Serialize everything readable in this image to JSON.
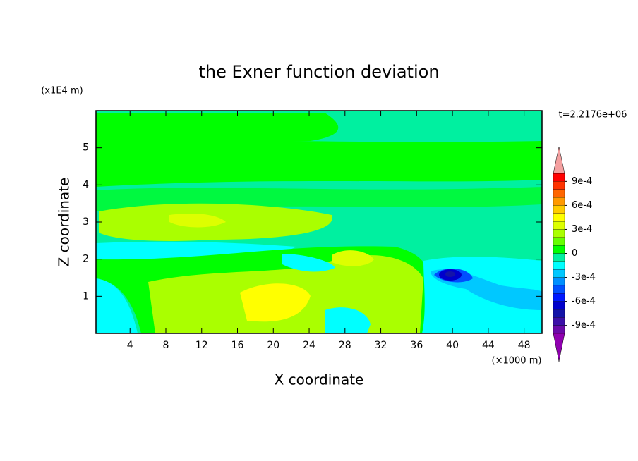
{
  "chart_data": {
    "type": "contour",
    "title": "the Exner function deviation",
    "xlabel": "X coordinate",
    "ylabel": "Z coordinate",
    "x_unit": "(×1000 m)",
    "y_unit": "(x1E4 m)",
    "time_label": "t=2.2176e+06",
    "xlim": [
      0.2,
      50
    ],
    "ylim": [
      0,
      6
    ],
    "xticks": [
      4,
      8,
      12,
      16,
      20,
      24,
      28,
      32,
      36,
      40,
      44,
      48
    ],
    "yticks": [
      1,
      2,
      3,
      4,
      5
    ],
    "colorbar": {
      "levels": [
        -0.001,
        -0.0009,
        -0.0008,
        -0.0007,
        -0.0006,
        -0.0005,
        -0.0004,
        -0.0003,
        -0.0002,
        -0.0001,
        0,
        0.0001,
        0.0002,
        0.0003,
        0.0004,
        0.0005,
        0.0006,
        0.0007,
        0.0008,
        0.0009,
        0.001
      ],
      "colors": [
        "#6a0aa8",
        "#3c10a8",
        "#1414a8",
        "#0000cc",
        "#0018ff",
        "#0050ff",
        "#0090ff",
        "#00c8ff",
        "#00ffff",
        "#00f0a0",
        "#00ff00",
        "#66ff00",
        "#aaff00",
        "#ddff00",
        "#ffff00",
        "#ffcc00",
        "#ff9900",
        "#ff6600",
        "#ff3300",
        "#ff0000"
      ],
      "over_color": "#f4a0a0",
      "under_color": "#9000b0",
      "ticks": [
        {
          "value": 0.0009,
          "label": "9e-4"
        },
        {
          "value": 0.0006,
          "label": "6e-4"
        },
        {
          "value": 0.0003,
          "label": "3e-4"
        },
        0,
        {
          "value": -0.0003,
          "label": "-3e-4"
        },
        {
          "value": -0.0006,
          "label": "-6e-4"
        },
        {
          "value": -0.0009,
          "label": "-9e-4"
        }
      ]
    }
  }
}
